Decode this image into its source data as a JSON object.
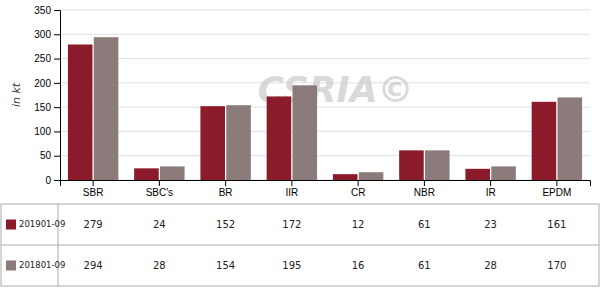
{
  "chart_data": {
    "type": "bar",
    "categories": [
      "SBR",
      "SBC's",
      "BR",
      "IIR",
      "CR",
      "NBR",
      "IR",
      "EPDM"
    ],
    "series": [
      {
        "name": "201901-09",
        "color": "#8B1A2A",
        "values": [
          279,
          24,
          152,
          172,
          12,
          61,
          23,
          161
        ]
      },
      {
        "name": "201801-09",
        "color": "#8B7B7B",
        "values": [
          294,
          28,
          154,
          195,
          16,
          61,
          28,
          170
        ]
      }
    ],
    "y_label": "in kt",
    "ylim": [
      0,
      350
    ],
    "yticks": [
      0,
      50,
      100,
      150,
      200,
      250,
      300,
      350
    ],
    "grid": true,
    "legend": "bottom",
    "annotations": [
      "CSRIA©"
    ]
  }
}
